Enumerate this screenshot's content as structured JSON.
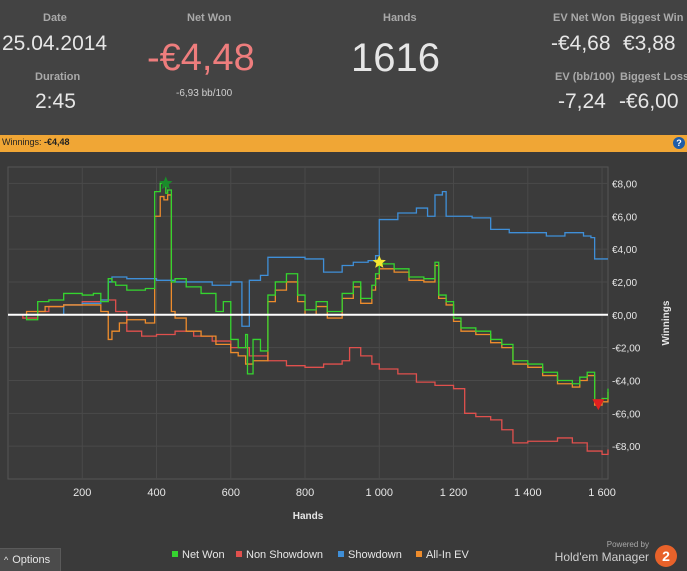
{
  "stats": {
    "date_label": "Date",
    "date_value": "25.04.2014",
    "duration_label": "Duration",
    "duration_value": "2:45",
    "net_won_label": "Net Won",
    "net_won_value": "-€4,48",
    "bb_per_100": "-6,93 bb/100",
    "hands_label": "Hands",
    "hands_value": "1616",
    "ev_net_won_label": "EV Net Won",
    "ev_net_won_value": "-€4,68",
    "biggest_win_label": "Biggest Win",
    "biggest_win_value": "€3,88",
    "ev_bb_label": "EV (bb/100)",
    "ev_bb_value": "-7,24",
    "biggest_loss_label": "Biggest Loss",
    "biggest_loss_value": "-€6,00"
  },
  "banner": {
    "label": "Winnings:",
    "value": "-€4,48",
    "help_icon": "?"
  },
  "options_label": "Options",
  "options_icon": "^",
  "brand": {
    "powered": "Powered by",
    "name": "Hold'em Manager",
    "logo_text": "2"
  },
  "colors": {
    "net_won": "#35d42f",
    "non_showdown": "#e0504d",
    "showdown": "#3f8fd8",
    "all_in_ev": "#ee8c2c",
    "negative": "#ee7d7d",
    "banner": "#f0a635"
  },
  "chart_data": {
    "type": "line",
    "xlabel": "Hands",
    "ylabel": "Winnings",
    "xlim": [
      0,
      1616
    ],
    "ylim": [
      -10,
      9
    ],
    "x_ticks": [
      200,
      400,
      600,
      800,
      1000,
      1200,
      1400,
      1600
    ],
    "x_tick_labels": [
      "200",
      "400",
      "600",
      "800",
      "1 000",
      "1 200",
      "1 400",
      "1 600"
    ],
    "y_ticks": [
      8,
      6,
      4,
      2,
      0,
      -2,
      -4,
      -6,
      -8
    ],
    "y_tick_labels": [
      "€8,00",
      "€6,00",
      "€4,00",
      "€2,00",
      "€0,00",
      "-€2,00",
      "-€4,00",
      "-€6,00",
      "-€8,00"
    ],
    "grid": true,
    "legend_position": "bottom",
    "series": [
      {
        "name": "Net Won",
        "x": [
          0,
          50,
          80,
          110,
          150,
          200,
          230,
          250,
          270,
          280,
          290,
          320,
          350,
          370,
          395,
          410,
          425,
          430,
          440,
          450,
          480,
          520,
          560,
          580,
          600,
          620,
          640,
          645,
          660,
          680,
          700,
          720,
          750,
          780,
          800,
          830,
          860,
          900,
          930,
          950,
          980,
          990,
          1000,
          1040,
          1080,
          1120,
          1150,
          1160,
          1180,
          1200,
          1220,
          1260,
          1300,
          1330,
          1360,
          1400,
          1440,
          1480,
          1520,
          1540,
          1560,
          1580,
          1600,
          1616
        ],
        "values": [
          0,
          -0.3,
          0.8,
          0.9,
          1.3,
          1.2,
          1.3,
          0.8,
          2.2,
          2.0,
          1.8,
          1.5,
          1.5,
          1.6,
          7.5,
          8.0,
          7.4,
          7.6,
          2.0,
          2.2,
          1.7,
          1.3,
          0.2,
          0.8,
          -1.5,
          -2.0,
          -1.2,
          -3.6,
          -1.5,
          -2.2,
          1.2,
          2.0,
          2.5,
          1.2,
          0.3,
          0.8,
          0.2,
          1.3,
          2.0,
          1.0,
          1.8,
          2.5,
          3.1,
          2.8,
          2.3,
          2.2,
          3.2,
          1.2,
          0.8,
          -0.2,
          -0.8,
          -1.0,
          -1.5,
          -1.8,
          -2.8,
          -3.0,
          -3.5,
          -4.0,
          -4.2,
          -3.8,
          -3.5,
          -5.3,
          -5.1,
          -4.5
        ]
      },
      {
        "name": "Non Showdown",
        "x": [
          0,
          40,
          80,
          110,
          150,
          200,
          250,
          290,
          320,
          360,
          400,
          450,
          500,
          550,
          600,
          650,
          700,
          750,
          800,
          850,
          900,
          920,
          950,
          980,
          1000,
          1050,
          1100,
          1150,
          1200,
          1230,
          1260,
          1300,
          1330,
          1360,
          1400,
          1440,
          1480,
          1520,
          1560,
          1600,
          1616
        ],
        "values": [
          0,
          -0.2,
          0.2,
          0.5,
          0.6,
          0.8,
          0.9,
          0.2,
          -1.0,
          -1.3,
          -1.2,
          -1.0,
          -1.3,
          -1.6,
          -2.0,
          -2.5,
          -2.8,
          -3.1,
          -3.2,
          -3.0,
          -2.8,
          -2.0,
          -2.5,
          -3.0,
          -3.3,
          -3.6,
          -4.1,
          -4.3,
          -4.5,
          -6.0,
          -6.2,
          -6.4,
          -7.0,
          -7.8,
          -7.7,
          -7.7,
          -7.5,
          -7.8,
          -8.3,
          -8.5,
          -8.2
        ]
      },
      {
        "name": "Showdown",
        "x": [
          0,
          100,
          150,
          200,
          250,
          270,
          280,
          300,
          320,
          360,
          400,
          450,
          500,
          550,
          580,
          600,
          620,
          630,
          650,
          680,
          700,
          750,
          800,
          850,
          900,
          930,
          970,
          990,
          1000,
          1050,
          1100,
          1130,
          1150,
          1170,
          1180,
          1250,
          1300,
          1350,
          1400,
          1450,
          1500,
          1550,
          1570,
          1580,
          1616
        ],
        "values": [
          0,
          0,
          0.6,
          0.7,
          0.9,
          2.0,
          2.3,
          2.3,
          2.2,
          2.2,
          2.1,
          2.0,
          2.0,
          1.8,
          1.8,
          2.0,
          2.0,
          -0.7,
          2.1,
          2.4,
          3.5,
          3.5,
          3.4,
          2.6,
          3.0,
          3.2,
          3.3,
          3.6,
          5.8,
          6.2,
          6.5,
          6.0,
          7.3,
          7.5,
          6.0,
          5.9,
          5.2,
          5.0,
          5.0,
          4.8,
          5.0,
          4.8,
          4.7,
          3.4,
          3.4
        ]
      },
      {
        "name": "All-In EV",
        "x": [
          0,
          50,
          100,
          150,
          200,
          250,
          270,
          280,
          300,
          320,
          370,
          395,
          410,
          420,
          430,
          440,
          450,
          480,
          520,
          560,
          600,
          620,
          640,
          660,
          700,
          720,
          750,
          780,
          800,
          830,
          860,
          900,
          930,
          950,
          980,
          990,
          1000,
          1040,
          1080,
          1120,
          1150,
          1160,
          1180,
          1200,
          1220,
          1260,
          1300,
          1330,
          1360,
          1400,
          1440,
          1480,
          1520,
          1540,
          1560,
          1580,
          1600,
          1616
        ],
        "values": [
          0,
          0.2,
          0.5,
          0.6,
          0.6,
          0.2,
          -1.5,
          -1.0,
          -0.5,
          -0.3,
          -0.5,
          6.0,
          7.2,
          7.0,
          7.3,
          0.2,
          -0.2,
          -1.0,
          -1.3,
          -1.8,
          -2.3,
          -2.5,
          -3.0,
          -2.8,
          0.8,
          1.5,
          2.0,
          0.8,
          0.0,
          0.5,
          -0.2,
          1.0,
          1.7,
          0.7,
          1.5,
          2.2,
          2.8,
          2.6,
          2.1,
          2.0,
          3.0,
          1.0,
          0.6,
          -0.4,
          -1.0,
          -1.2,
          -1.7,
          -2.0,
          -3.0,
          -3.2,
          -3.7,
          -4.2,
          -4.4,
          -4.0,
          -3.7,
          -5.5,
          -5.3,
          -4.7
        ]
      }
    ],
    "markers": [
      {
        "type": "max",
        "shape": "star",
        "x": 425,
        "y": 8.0,
        "color": "#1a8c2a"
      },
      {
        "type": "highlight",
        "shape": "star",
        "x": 1000,
        "y": 3.2,
        "color": "#f5e631"
      },
      {
        "type": "min",
        "shape": "triangle-down",
        "x": 1590,
        "y": -5.5,
        "color": "#e02020"
      }
    ]
  }
}
